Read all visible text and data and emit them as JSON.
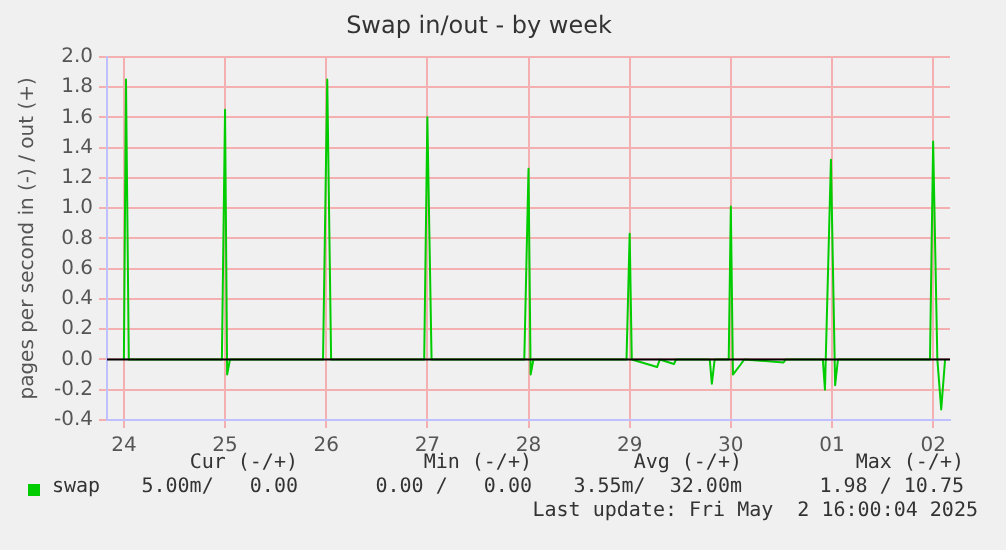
{
  "chart_data": {
    "type": "line",
    "title": "Swap in/out - by week",
    "ylabel": "pages per second in (-) / out (+)",
    "x": [
      "2025-04-24T00:00",
      "2025-04-24T00:30",
      "2025-04-24T01:10",
      "2025-04-24T23:15",
      "2025-04-25T00:00",
      "2025-04-25T00:30",
      "2025-04-25T01:10",
      "2025-04-25T23:15",
      "2025-04-26T00:15",
      "2025-04-26T01:10",
      "2025-04-26T23:15",
      "2025-04-27T00:00",
      "2025-04-27T01:00",
      "2025-04-27T23:00",
      "2025-04-28T00:00",
      "2025-04-28T00:30",
      "2025-04-28T01:10",
      "2025-04-28T23:15",
      "2025-04-29T00:00",
      "2025-04-29T00:30",
      "2025-04-29T06:30",
      "2025-04-29T07:10",
      "2025-04-29T10:30",
      "2025-04-29T11:00",
      "2025-04-29T19:00",
      "2025-04-29T19:30",
      "2025-04-29T20:10",
      "2025-04-29T23:30",
      "2025-04-30T00:00",
      "2025-04-30T00:30",
      "2025-04-30T02:25",
      "2025-04-30T03:10",
      "2025-04-30T12:30",
      "2025-04-30T13:00",
      "2025-04-30T21:50",
      "2025-04-30T22:20",
      "2025-04-30T23:45",
      "2025-05-01T00:45",
      "2025-05-01T01:25",
      "2025-05-01T23:15",
      "2025-05-02T00:00",
      "2025-05-02T01:00",
      "2025-05-02T01:55",
      "2025-05-02T02:50"
    ],
    "series": [
      {
        "name": "swap",
        "color": "#00cc00",
        "values": [
          0,
          1.85,
          0,
          0,
          1.65,
          -0.1,
          0,
          0,
          1.85,
          0,
          0,
          1.6,
          0,
          0,
          1.26,
          -0.1,
          0,
          0,
          0.83,
          0,
          -0.05,
          0,
          -0.03,
          0,
          0,
          -0.16,
          0,
          0,
          1.01,
          -0.1,
          -0.03,
          0,
          -0.02,
          0,
          0,
          -0.2,
          1.32,
          -0.17,
          0,
          0,
          1.44,
          0,
          -0.33,
          0
        ]
      }
    ],
    "xlim": [
      "2025-04-23T20:00",
      "2025-05-02T04:00"
    ],
    "xticks": [
      {
        "value": "2025-04-24",
        "label": "24"
      },
      {
        "value": "2025-04-25",
        "label": "25"
      },
      {
        "value": "2025-04-26",
        "label": "26"
      },
      {
        "value": "2025-04-27",
        "label": "27"
      },
      {
        "value": "2025-04-28",
        "label": "28"
      },
      {
        "value": "2025-04-29",
        "label": "29"
      },
      {
        "value": "2025-04-30",
        "label": "30"
      },
      {
        "value": "2025-05-01",
        "label": "01"
      },
      {
        "value": "2025-05-02",
        "label": "02"
      }
    ],
    "ylim": [
      -0.4,
      2.0
    ],
    "yticks": [
      {
        "value": -0.4,
        "label": "-0.4"
      },
      {
        "value": -0.2,
        "label": "-0.2"
      },
      {
        "value": 0,
        "label": "0.0"
      },
      {
        "value": 0.2,
        "label": "0.2"
      },
      {
        "value": 0.4,
        "label": "0.4"
      },
      {
        "value": 0.6,
        "label": "0.6"
      },
      {
        "value": 0.8,
        "label": "0.8"
      },
      {
        "value": 1,
        "label": "1.0"
      },
      {
        "value": 1.2,
        "label": "1.2"
      },
      {
        "value": 1.4,
        "label": "1.4"
      },
      {
        "value": 1.6,
        "label": "1.6"
      },
      {
        "value": 1.8,
        "label": "1.8"
      },
      {
        "value": 2,
        "label": "2.0"
      }
    ],
    "ref_lines": [
      {
        "axis": "y",
        "value": 0,
        "color": "#000000"
      }
    ],
    "grid": true,
    "legend": "bottom left",
    "marker": "none",
    "line_style": "solid",
    "annotations": [
      "Cur (-/+)",
      "Min (-/+)",
      "Avg (-/+)",
      "Max (-/+)",
      "5.00m/   0.00",
      "0.00 /   0.00",
      "3.55m/  32.00m",
      "1.98 / 10.75",
      "Last update: Fri May  2 16:00:04 2025"
    ]
  }
}
